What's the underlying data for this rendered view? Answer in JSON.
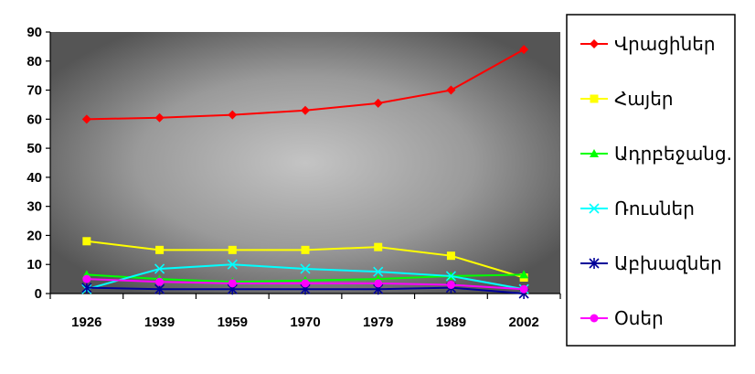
{
  "chart_data": {
    "type": "line",
    "title": "",
    "xlabel": "",
    "ylabel": "",
    "categories": [
      "1926",
      "1939",
      "1959",
      "1970",
      "1979",
      "1989",
      "2002"
    ],
    "ylim": [
      0,
      90
    ],
    "yticks": [
      "0",
      "10",
      "20",
      "30",
      "40",
      "50",
      "60",
      "70",
      "80",
      "90"
    ],
    "grid": false,
    "legend_position": "right",
    "series": [
      {
        "name": "Վրացիներ",
        "color": "#ff0000",
        "marker": "diamond",
        "values": [
          60,
          60.5,
          61.5,
          63,
          65.5,
          70,
          84
        ]
      },
      {
        "name": "Հայեր",
        "color": "#ffff00",
        "marker": "square",
        "values": [
          18,
          15,
          15,
          15,
          16,
          13,
          5.5
        ]
      },
      {
        "name": "Ադրբեջանց.",
        "color": "#00ff00",
        "marker": "triangle",
        "values": [
          6.5,
          5,
          4,
          4.5,
          5,
          6,
          6.5
        ]
      },
      {
        "name": "Ռուսներ",
        "color": "#00ffff",
        "marker": "x",
        "values": [
          1.5,
          8.5,
          10,
          8.5,
          7.5,
          6,
          1.5
        ]
      },
      {
        "name": "Աբխազներ",
        "color": "#000099",
        "marker": "star",
        "values": [
          2,
          1.5,
          1.5,
          1.5,
          1.5,
          2,
          0
        ]
      },
      {
        "name": "Օսեր",
        "color": "#ff00ff",
        "marker": "circle",
        "values": [
          5,
          4,
          3.5,
          3.5,
          3.5,
          3,
          1.5
        ]
      }
    ]
  }
}
